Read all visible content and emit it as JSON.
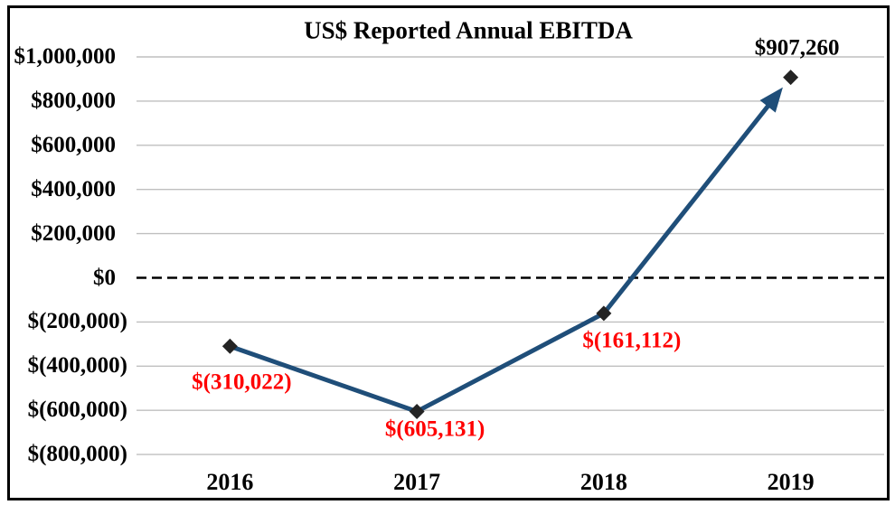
{
  "window": {
    "background": "#FFFFFF",
    "border_color": "#000000"
  },
  "chart_data": {
    "type": "line",
    "title": "US$ Reported Annual EBITDA",
    "categories": [
      "2016",
      "2017",
      "2018",
      "2019"
    ],
    "values": [
      -310022,
      -605131,
      -161112,
      907260
    ],
    "data_labels": [
      "$(310,022)",
      "$(605,131)",
      "$(161,112)",
      "$907,260"
    ],
    "data_label_colors": [
      "#FF0000",
      "#FF0000",
      "#FF0000",
      "#000000"
    ],
    "xlabel": "",
    "ylabel": "",
    "y_axis": {
      "min": -800000,
      "max": 1000000,
      "step": 200000,
      "tick_labels": [
        "$1,000,000",
        "$800,000",
        "$600,000",
        "$400,000",
        "$200,000",
        "$0",
        "$(200,000)",
        "$(400,000)",
        "$(600,000)",
        "$(800,000)"
      ]
    },
    "x_axis": {
      "tick_labels": [
        "2016",
        "2017",
        "2018",
        "2019"
      ]
    },
    "legend": "none",
    "grid": true,
    "zero_line_style": "dashed",
    "last_segment_arrow": true,
    "marker_shape": "diamond",
    "colors": {
      "line": "#1F4E79",
      "marker": "#242424",
      "gridline": "#BFBFBF",
      "zero_line": "#000000",
      "negative_label": "#FF0000",
      "positive_label": "#000000",
      "title": "#000000"
    }
  }
}
